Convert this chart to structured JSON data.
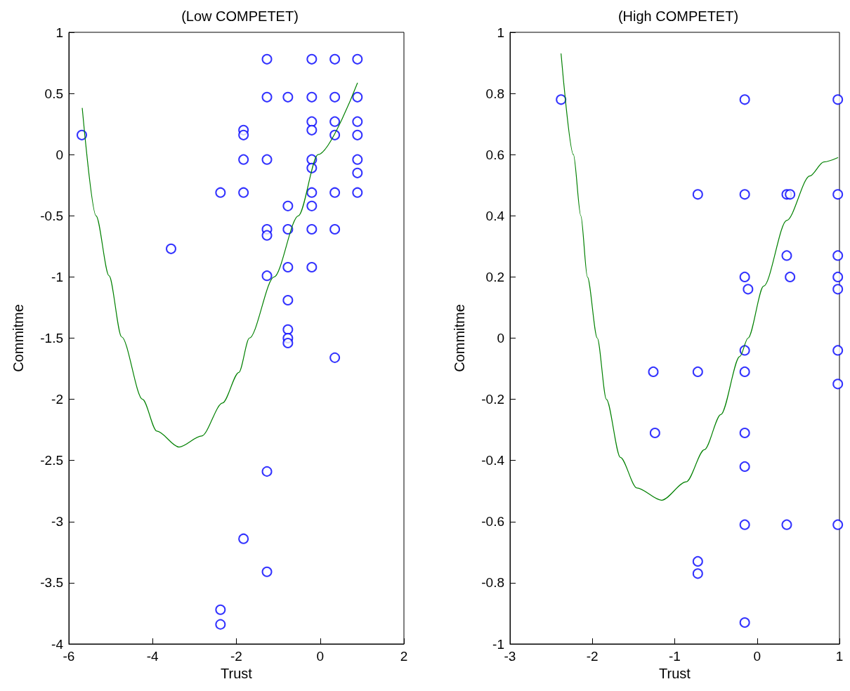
{
  "chart_data": [
    {
      "type": "scatter",
      "title": "(Low COMPETET)",
      "xlabel": "Trust",
      "ylabel": "Commitme",
      "marker": "circle",
      "grid": false,
      "xlim": [
        -6,
        2
      ],
      "xticks": [
        -6,
        -4,
        -2,
        0,
        2
      ],
      "ylim": [
        -4,
        1
      ],
      "yticks": [
        -4,
        -3.5,
        -3,
        -2.5,
        -2,
        -1.5,
        -1,
        -0.5,
        0,
        0.5,
        1
      ],
      "series": [
        {
          "type": "scatter",
          "color": "#0000ff",
          "x": [
            -5.69,
            -3.56,
            -2.38,
            -2.38,
            -2.38,
            -1.83,
            -1.83,
            -1.83,
            -1.83,
            -1.83,
            -1.27,
            -1.27,
            -1.27,
            -1.27,
            -1.27,
            -1.27,
            -1.27,
            -1.27,
            -0.77,
            -0.77,
            -0.77,
            -0.77,
            -0.77,
            -0.77,
            -0.77,
            -0.77,
            -0.2,
            -0.2,
            -0.2,
            -0.2,
            -0.2,
            -0.2,
            -0.2,
            -0.2,
            -0.2,
            -0.2,
            0.35,
            0.35,
            0.35,
            0.35,
            0.35,
            0.35,
            0.35,
            0.89,
            0.89,
            0.89,
            0.89,
            0.89,
            0.89,
            0.89
          ],
          "values": [
            0.16,
            -0.77,
            -0.31,
            -3.72,
            -3.84,
            0.2,
            0.16,
            -0.04,
            -0.31,
            -3.14,
            0.78,
            0.47,
            -0.04,
            -0.61,
            -0.66,
            -0.99,
            -2.59,
            -3.41,
            0.47,
            -0.42,
            -0.61,
            -0.92,
            -1.19,
            -1.43,
            -1.5,
            -1.54,
            0.78,
            0.47,
            0.27,
            0.2,
            -0.04,
            -0.11,
            -0.31,
            -0.42,
            -0.61,
            -0.92,
            0.78,
            0.47,
            0.27,
            0.16,
            -0.31,
            -0.61,
            -1.66,
            0.78,
            0.47,
            0.27,
            0.16,
            -0.04,
            -0.15,
            -0.31
          ]
        },
        {
          "type": "line",
          "color": "#008000",
          "marker": "none",
          "x": [
            -5.68,
            -5.35,
            -5.04,
            -4.74,
            -4.24,
            -3.9,
            -3.37,
            -2.83,
            -2.33,
            -1.94,
            -1.69,
            -1.1,
            -0.52,
            -0.05,
            0.89
          ],
          "values": [
            0.38,
            -0.5,
            -0.99,
            -1.49,
            -2.0,
            -2.26,
            -2.39,
            -2.3,
            -2.03,
            -1.78,
            -1.5,
            -1.0,
            -0.5,
            0.0,
            0.585
          ]
        }
      ]
    },
    {
      "type": "scatter",
      "title": "(High COMPETET)",
      "xlabel": "Trust",
      "ylabel": "Commitme",
      "marker": "circle",
      "grid": false,
      "xlim": [
        -3,
        1
      ],
      "xticks": [
        -3,
        -2,
        -1,
        0,
        1
      ],
      "ylim": [
        -1,
        1
      ],
      "yticks": [
        -1,
        -0.8,
        -0.6,
        -0.4,
        -0.2,
        0,
        0.2,
        0.4,
        0.6,
        0.8,
        1
      ],
      "series": [
        {
          "type": "scatter",
          "color": "#0000ff",
          "x": [
            -2.38,
            -1.26,
            -1.24,
            -0.72,
            -0.72,
            -0.72,
            -0.72,
            -0.15,
            -0.15,
            -0.15,
            -0.11,
            -0.15,
            -0.15,
            -0.15,
            -0.15,
            -0.15,
            -0.15,
            0.36,
            0.4,
            0.36,
            0.4,
            0.36,
            0.98,
            0.98,
            0.98,
            0.98,
            0.98,
            0.98,
            0.98,
            0.98
          ],
          "values": [
            0.78,
            -0.11,
            -0.31,
            0.47,
            -0.11,
            -0.73,
            -0.77,
            0.78,
            0.47,
            0.2,
            0.16,
            -0.04,
            -0.11,
            -0.31,
            -0.42,
            -0.61,
            -0.93,
            0.47,
            0.47,
            0.27,
            0.2,
            -0.61,
            0.78,
            0.47,
            0.27,
            0.2,
            0.16,
            -0.04,
            -0.15,
            -0.61
          ]
        },
        {
          "type": "line",
          "color": "#008000",
          "marker": "none",
          "x": [
            -2.38,
            -2.23,
            -2.14,
            -2.06,
            -1.94,
            -1.83,
            -1.66,
            -1.46,
            -1.16,
            -0.86,
            -0.64,
            -0.44,
            -0.21,
            -0.11,
            0.08,
            0.36,
            0.64,
            0.81,
            0.98
          ],
          "values": [
            0.93,
            0.6,
            0.4,
            0.2,
            0.0,
            -0.2,
            -0.39,
            -0.49,
            -0.53,
            -0.47,
            -0.365,
            -0.25,
            -0.06,
            0.0,
            0.17,
            0.385,
            0.53,
            0.576,
            0.59
          ]
        }
      ]
    }
  ]
}
